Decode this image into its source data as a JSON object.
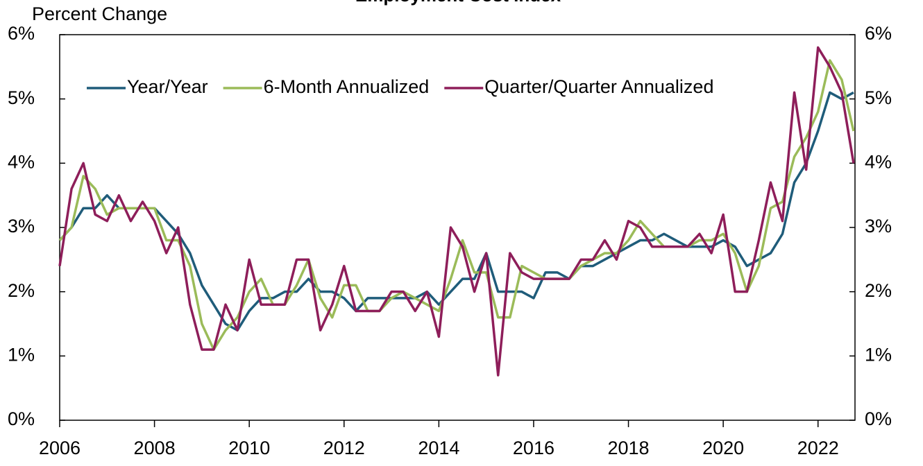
{
  "chart_data": {
    "type": "line",
    "title": "Employment Cost Index",
    "y_axis_label": "Percent Change",
    "x": [
      2006,
      2006.25,
      2006.5,
      2006.75,
      2007,
      2007.25,
      2007.5,
      2007.75,
      2008,
      2008.25,
      2008.5,
      2008.75,
      2009,
      2009.25,
      2009.5,
      2009.75,
      2010,
      2010.25,
      2010.5,
      2010.75,
      2011,
      2011.25,
      2011.5,
      2011.75,
      2012,
      2012.25,
      2012.5,
      2012.75,
      2013,
      2013.25,
      2013.5,
      2013.75,
      2014,
      2014.25,
      2014.5,
      2014.75,
      2015,
      2015.25,
      2015.5,
      2015.75,
      2016,
      2016.25,
      2016.5,
      2016.75,
      2017,
      2017.25,
      2017.5,
      2017.75,
      2018,
      2018.25,
      2018.5,
      2018.75,
      2019,
      2019.25,
      2019.5,
      2019.75,
      2020,
      2020.25,
      2020.5,
      2020.75,
      2021,
      2021.25,
      2021.5,
      2021.75,
      2022,
      2022.25,
      2022.5,
      2022.75
    ],
    "series": [
      {
        "name": "Year/Year",
        "color": "#1f5c7a",
        "values": [
          2.8,
          3.0,
          3.3,
          3.3,
          3.5,
          3.3,
          3.3,
          3.3,
          3.3,
          3.1,
          2.9,
          2.6,
          2.1,
          1.8,
          1.5,
          1.4,
          1.7,
          1.9,
          1.9,
          2.0,
          2.0,
          2.2,
          2.0,
          2.0,
          1.9,
          1.7,
          1.9,
          1.9,
          1.9,
          1.9,
          1.9,
          2.0,
          1.8,
          2.0,
          2.2,
          2.2,
          2.6,
          2.0,
          2.0,
          2.0,
          1.9,
          2.3,
          2.3,
          2.2,
          2.4,
          2.4,
          2.5,
          2.6,
          2.7,
          2.8,
          2.8,
          2.9,
          2.8,
          2.7,
          2.7,
          2.7,
          2.8,
          2.7,
          2.4,
          2.5,
          2.6,
          2.9,
          3.7,
          4.0,
          4.5,
          5.1,
          5.0,
          5.1
        ]
      },
      {
        "name": "6-Month Annualized",
        "color": "#9bbb59",
        "values": [
          2.8,
          3.0,
          3.8,
          3.6,
          3.2,
          3.3,
          3.3,
          3.3,
          3.3,
          2.8,
          2.8,
          2.4,
          1.5,
          1.1,
          1.4,
          1.6,
          2.0,
          2.2,
          1.8,
          1.8,
          2.1,
          2.5,
          1.9,
          1.6,
          2.1,
          2.1,
          1.7,
          1.7,
          1.9,
          2.0,
          1.9,
          1.8,
          1.7,
          2.2,
          2.8,
          2.3,
          2.3,
          1.6,
          1.6,
          2.4,
          2.3,
          2.2,
          2.2,
          2.2,
          2.4,
          2.5,
          2.6,
          2.6,
          2.8,
          3.1,
          2.9,
          2.7,
          2.7,
          2.7,
          2.8,
          2.8,
          2.9,
          2.6,
          2.0,
          2.4,
          3.3,
          3.4,
          4.1,
          4.4,
          4.8,
          5.6,
          5.3,
          4.5
        ]
      },
      {
        "name": "Quarter/Quarter Annualized",
        "color": "#8e1e5a",
        "values": [
          2.4,
          3.6,
          4.0,
          3.2,
          3.1,
          3.5,
          3.1,
          3.4,
          3.1,
          2.6,
          3.0,
          1.8,
          1.1,
          1.1,
          1.8,
          1.4,
          2.5,
          1.8,
          1.8,
          1.8,
          2.5,
          2.5,
          1.4,
          1.8,
          2.4,
          1.7,
          1.7,
          1.7,
          2.0,
          2.0,
          1.7,
          2.0,
          1.3,
          3.0,
          2.7,
          2.0,
          2.6,
          0.7,
          2.6,
          2.3,
          2.2,
          2.2,
          2.2,
          2.2,
          2.5,
          2.5,
          2.8,
          2.5,
          3.1,
          3.0,
          2.7,
          2.7,
          2.7,
          2.7,
          2.9,
          2.6,
          3.2,
          2.0,
          2.0,
          2.8,
          3.7,
          3.1,
          5.1,
          3.9,
          5.8,
          5.5,
          5.1,
          4.0
        ]
      }
    ],
    "xlim": [
      2006,
      2022.78
    ],
    "xticks": [
      2006,
      2008,
      2010,
      2012,
      2014,
      2016,
      2018,
      2020,
      2022
    ],
    "ylim": [
      0,
      6
    ],
    "yticks": [
      {
        "value": 0,
        "label": "0%"
      },
      {
        "value": 1,
        "label": "1%"
      },
      {
        "value": 2,
        "label": "2%"
      },
      {
        "value": 3,
        "label": "3%"
      },
      {
        "value": 4,
        "label": "4%"
      },
      {
        "value": 5,
        "label": "5%"
      },
      {
        "value": 6,
        "label": "6%"
      }
    ],
    "y2lim": [
      0,
      6
    ],
    "y2ticks": [
      {
        "value": 0,
        "label": "0%"
      },
      {
        "value": 1,
        "label": "1%"
      },
      {
        "value": 2,
        "label": "2%"
      },
      {
        "value": 3,
        "label": "3%"
      },
      {
        "value": 4,
        "label": "4%"
      },
      {
        "value": 5,
        "label": "5%"
      },
      {
        "value": 6,
        "label": "6%"
      }
    ],
    "grid": false,
    "legend_position": "top-left"
  }
}
